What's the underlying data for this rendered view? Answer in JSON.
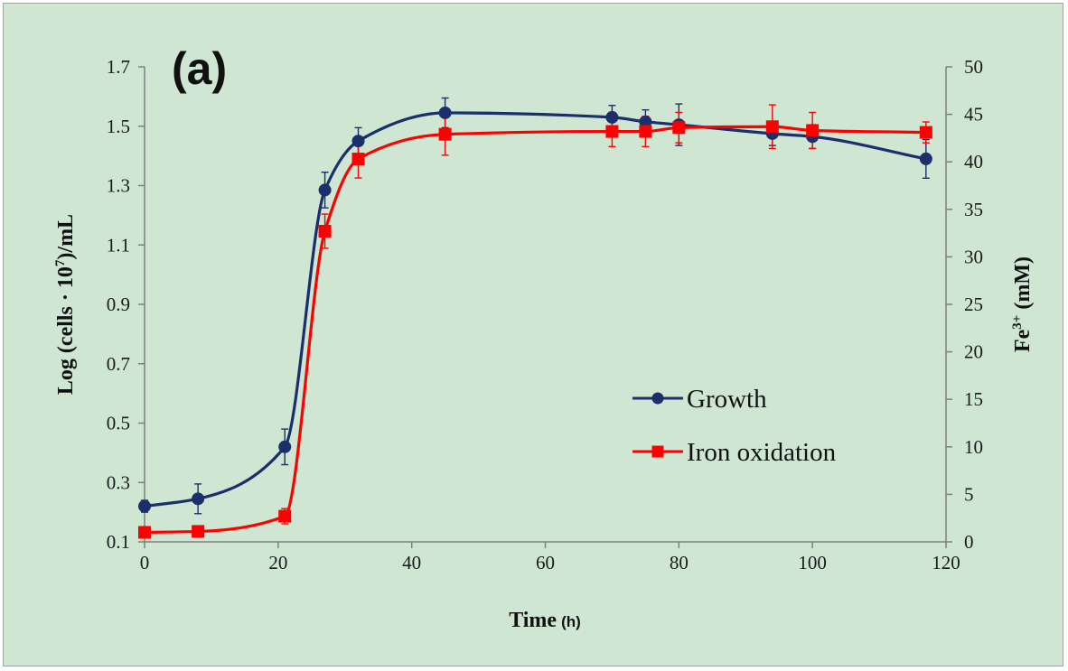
{
  "chart_data": {
    "type": "line",
    "panel_label": "(a)",
    "xlabel": "Time",
    "xlabel_unit": "(h)",
    "ylabel_left": "Log (cells · 10⁷)/mL",
    "ylabel_right": "Fe³⁺ (mM)",
    "xlim": [
      0,
      120
    ],
    "ylim_left": [
      0.1,
      1.7
    ],
    "ylim_right": [
      0,
      50
    ],
    "x_ticks": [
      "0",
      "20",
      "40",
      "60",
      "80",
      "100",
      "120"
    ],
    "y_left_ticks": [
      "0.1",
      "0.3",
      "0.5",
      "0.7",
      "0.9",
      "1.1",
      "1.3",
      "1.5",
      "1.7"
    ],
    "y_right_ticks": [
      "0",
      "5",
      "10",
      "15",
      "20",
      "25",
      "30",
      "35",
      "40",
      "45",
      "50"
    ],
    "grid": false,
    "legend_position": "center-right",
    "series": [
      {
        "name": "Growth",
        "axis": "left",
        "color": "#1a2f6b",
        "marker": "circle",
        "x": [
          0,
          8,
          21,
          27,
          32,
          45,
          70,
          75,
          80,
          94,
          100,
          117
        ],
        "y": [
          0.22,
          0.245,
          0.42,
          1.285,
          1.45,
          1.545,
          1.53,
          1.515,
          1.505,
          1.475,
          1.465,
          1.39
        ],
        "err": [
          0.02,
          0.05,
          0.06,
          0.06,
          0.045,
          0.05,
          0.04,
          0.04,
          0.07,
          0.04,
          0.04,
          0.065
        ]
      },
      {
        "name": "Iron oxidation",
        "axis": "right",
        "color": "#ff0000",
        "marker": "square",
        "x": [
          0,
          8,
          21,
          27,
          32,
          45,
          70,
          75,
          80,
          94,
          100,
          117
        ],
        "y": [
          1.0,
          1.1,
          2.7,
          32.7,
          40.3,
          42.9,
          43.2,
          43.2,
          43.6,
          43.7,
          43.3,
          43.1
        ],
        "err": [
          0.2,
          0.2,
          0.8,
          1.8,
          2.0,
          2.2,
          1.6,
          1.6,
          1.6,
          2.3,
          1.9,
          1.1
        ]
      }
    ]
  }
}
